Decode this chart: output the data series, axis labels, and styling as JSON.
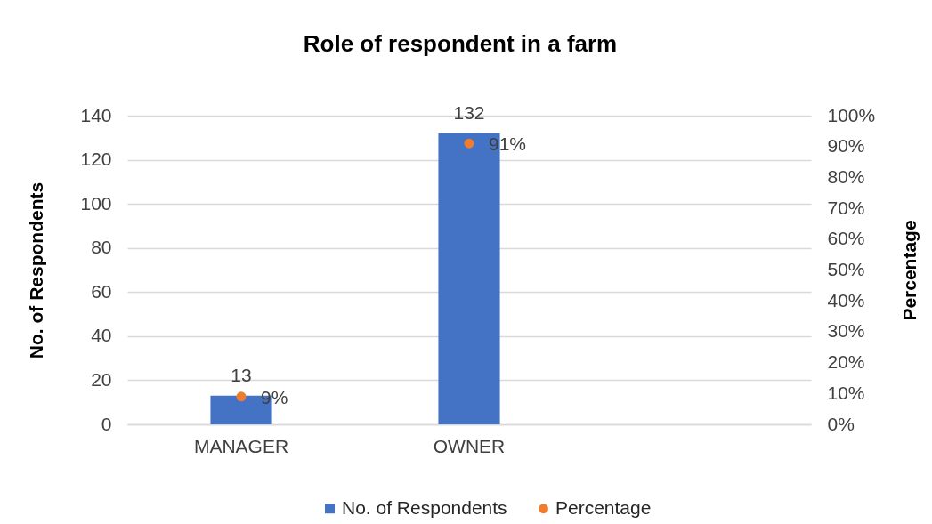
{
  "chart_data": {
    "type": "bar",
    "title": "Role of respondent in a farm",
    "ylabel": "No. of Respondents",
    "y2label": "Percentage",
    "categories": [
      "MANAGER",
      "OWNER",
      null
    ],
    "series": [
      {
        "name": "No. of Respondents",
        "type": "bar",
        "color": "#4472c4",
        "values": [
          13,
          132,
          null
        ],
        "value_labels": [
          "13",
          "132",
          null
        ]
      },
      {
        "name": "Percentage",
        "type": "scatter",
        "axis": "y2",
        "color": "#ed7d31",
        "values": [
          9,
          91,
          null
        ],
        "value_labels": [
          "9%",
          "91%",
          null
        ]
      }
    ],
    "ylim": [
      0,
      140
    ],
    "yticks": [
      0,
      20,
      40,
      60,
      80,
      100,
      120,
      140
    ],
    "y2lim": [
      0,
      100
    ],
    "y2ticks": [
      {
        "value": 0,
        "label": "0%"
      },
      {
        "value": 10,
        "label": "10%"
      },
      {
        "value": 20,
        "label": "20%"
      },
      {
        "value": 30,
        "label": "30%"
      },
      {
        "value": 40,
        "label": "40%"
      },
      {
        "value": 50,
        "label": "50%"
      },
      {
        "value": 60,
        "label": "60%"
      },
      {
        "value": 70,
        "label": "70%"
      },
      {
        "value": 80,
        "label": "80%"
      },
      {
        "value": 90,
        "label": "90%"
      },
      {
        "value": 100,
        "label": "100%"
      }
    ],
    "grid": "y",
    "legend": "bottom",
    "marker": "circle"
  }
}
